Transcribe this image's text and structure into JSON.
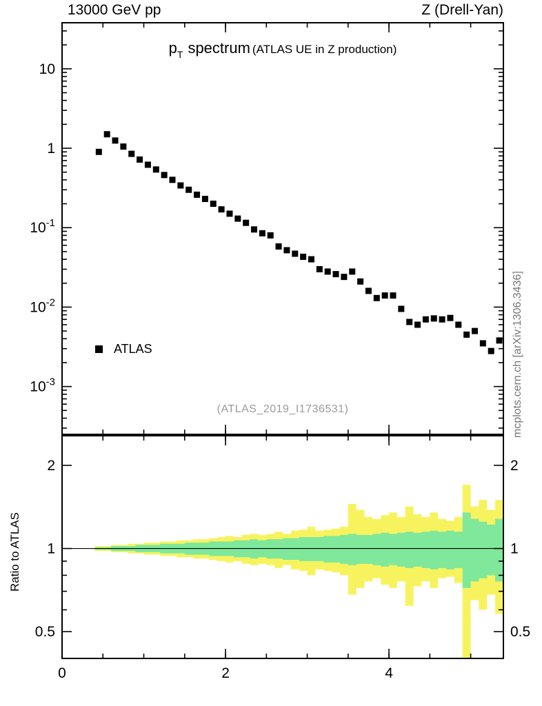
{
  "header": {
    "left": "13000 GeV pp",
    "right": "Z (Drell-Yan)"
  },
  "title": {
    "symbol": "p",
    "subscript": "T",
    "text": "spectrum",
    "context": "(ATLAS UE in Z production)"
  },
  "legend": {
    "entries": [
      {
        "label": "ATLAS",
        "marker": "filled-black-square"
      }
    ]
  },
  "watermark": "(ATLAS_2019_I1736531)",
  "side_note": "mcplots.cern.ch [arXiv:1306.3436]",
  "ratio_axis_label": "Ratio to ATLAS",
  "colors": {
    "marker": "#000000",
    "band_outer": "#f7f35f",
    "band_inner": "#7fe89a",
    "watermark": "#9a9a9a",
    "side_note": "#777777"
  },
  "chart_data": {
    "type": "scatter",
    "title": "p_T spectrum (ATLAS UE in Z production)",
    "xlabel": "",
    "xlim": [
      0,
      5.4
    ],
    "xticks": [
      {
        "value": 0,
        "label": "0"
      },
      {
        "value": 2,
        "label": "2"
      },
      {
        "value": 4,
        "label": "4"
      }
    ],
    "x_minor_step": 0.5,
    "bin_half_width": 0.05,
    "x": [
      0.45,
      0.55,
      0.65,
      0.75,
      0.85,
      0.95,
      1.05,
      1.15,
      1.25,
      1.35,
      1.45,
      1.55,
      1.65,
      1.75,
      1.85,
      1.95,
      2.05,
      2.15,
      2.25,
      2.35,
      2.45,
      2.55,
      2.65,
      2.75,
      2.85,
      2.95,
      3.05,
      3.15,
      3.25,
      3.35,
      3.45,
      3.55,
      3.65,
      3.75,
      3.85,
      3.95,
      4.05,
      4.15,
      4.25,
      4.35,
      4.45,
      4.55,
      4.65,
      4.75,
      4.85,
      4.95,
      5.05,
      5.15,
      5.25,
      5.35
    ],
    "main_panel": {
      "yscale": "log",
      "ylim": [
        0.00025,
        38
      ],
      "yticks": [
        {
          "value": 10,
          "base": "10",
          "exp": ""
        },
        {
          "value": 1,
          "base": "1",
          "exp": ""
        },
        {
          "value": 0.1,
          "base": "10",
          "exp": "-1"
        },
        {
          "value": 0.01,
          "base": "10",
          "exp": "-2"
        },
        {
          "value": 0.001,
          "base": "10",
          "exp": "-3"
        }
      ],
      "series": [
        {
          "name": "ATLAS",
          "marker": "square",
          "color": "#000000",
          "y": [
            0.9,
            1.5,
            1.25,
            1.05,
            0.85,
            0.72,
            0.62,
            0.54,
            0.46,
            0.4,
            0.34,
            0.3,
            0.26,
            0.23,
            0.2,
            0.17,
            0.15,
            0.13,
            0.115,
            0.095,
            0.085,
            0.08,
            0.058,
            0.052,
            0.047,
            0.043,
            0.04,
            0.03,
            0.028,
            0.026,
            0.024,
            0.028,
            0.021,
            0.016,
            0.013,
            0.014,
            0.014,
            0.0095,
            0.0065,
            0.006,
            0.007,
            0.0072,
            0.007,
            0.0073,
            0.006,
            0.0045,
            0.005,
            0.0035,
            0.0028,
            0.0038
          ]
        }
      ]
    },
    "ratio_panel": {
      "yscale": "log",
      "ylim": [
        0.4,
        2.56
      ],
      "yticks": [
        {
          "value": 0.5,
          "label": "0.5"
        },
        {
          "value": 1,
          "label": "1"
        },
        {
          "value": 2,
          "label": "2"
        }
      ],
      "y_minor": [
        0.4,
        0.6,
        0.7,
        0.8,
        0.9
      ],
      "reference_line": 1,
      "bands": [
        {
          "name": "uncertainty-band-outer",
          "color": "#f7f35f",
          "lo": [
            0.98,
            0.98,
            0.97,
            0.97,
            0.96,
            0.96,
            0.95,
            0.95,
            0.94,
            0.94,
            0.93,
            0.93,
            0.92,
            0.92,
            0.91,
            0.9,
            0.89,
            0.9,
            0.88,
            0.87,
            0.88,
            0.87,
            0.85,
            0.87,
            0.84,
            0.83,
            0.8,
            0.84,
            0.83,
            0.82,
            0.8,
            0.68,
            0.72,
            0.76,
            0.78,
            0.74,
            0.72,
            0.76,
            0.62,
            0.73,
            0.76,
            0.72,
            0.78,
            0.79,
            0.75,
            0.35,
            0.65,
            0.6,
            0.68,
            0.58
          ],
          "hi": [
            1.02,
            1.02,
            1.03,
            1.03,
            1.04,
            1.04,
            1.05,
            1.05,
            1.06,
            1.06,
            1.07,
            1.07,
            1.08,
            1.08,
            1.09,
            1.1,
            1.11,
            1.1,
            1.12,
            1.13,
            1.12,
            1.13,
            1.15,
            1.13,
            1.16,
            1.17,
            1.2,
            1.16,
            1.17,
            1.18,
            1.2,
            1.45,
            1.38,
            1.3,
            1.28,
            1.32,
            1.35,
            1.3,
            1.42,
            1.33,
            1.3,
            1.35,
            1.28,
            1.26,
            1.3,
            1.7,
            1.42,
            1.5,
            1.38,
            1.5
          ]
        },
        {
          "name": "uncertainty-band-inner",
          "color": "#7fe89a",
          "lo": [
            0.99,
            0.99,
            0.98,
            0.98,
            0.98,
            0.97,
            0.97,
            0.97,
            0.96,
            0.96,
            0.96,
            0.95,
            0.95,
            0.95,
            0.94,
            0.94,
            0.94,
            0.93,
            0.93,
            0.92,
            0.93,
            0.92,
            0.92,
            0.91,
            0.91,
            0.9,
            0.9,
            0.9,
            0.89,
            0.89,
            0.88,
            0.87,
            0.88,
            0.88,
            0.87,
            0.86,
            0.87,
            0.86,
            0.85,
            0.86,
            0.85,
            0.84,
            0.85,
            0.84,
            0.85,
            0.72,
            0.76,
            0.78,
            0.8,
            0.76
          ],
          "hi": [
            1.01,
            1.01,
            1.02,
            1.02,
            1.02,
            1.03,
            1.03,
            1.03,
            1.04,
            1.04,
            1.04,
            1.05,
            1.05,
            1.05,
            1.06,
            1.06,
            1.06,
            1.07,
            1.07,
            1.08,
            1.07,
            1.08,
            1.08,
            1.09,
            1.09,
            1.1,
            1.1,
            1.1,
            1.11,
            1.11,
            1.12,
            1.13,
            1.12,
            1.12,
            1.13,
            1.14,
            1.13,
            1.14,
            1.15,
            1.14,
            1.15,
            1.16,
            1.15,
            1.16,
            1.15,
            1.35,
            1.28,
            1.25,
            1.22,
            1.28
          ]
        }
      ]
    }
  }
}
